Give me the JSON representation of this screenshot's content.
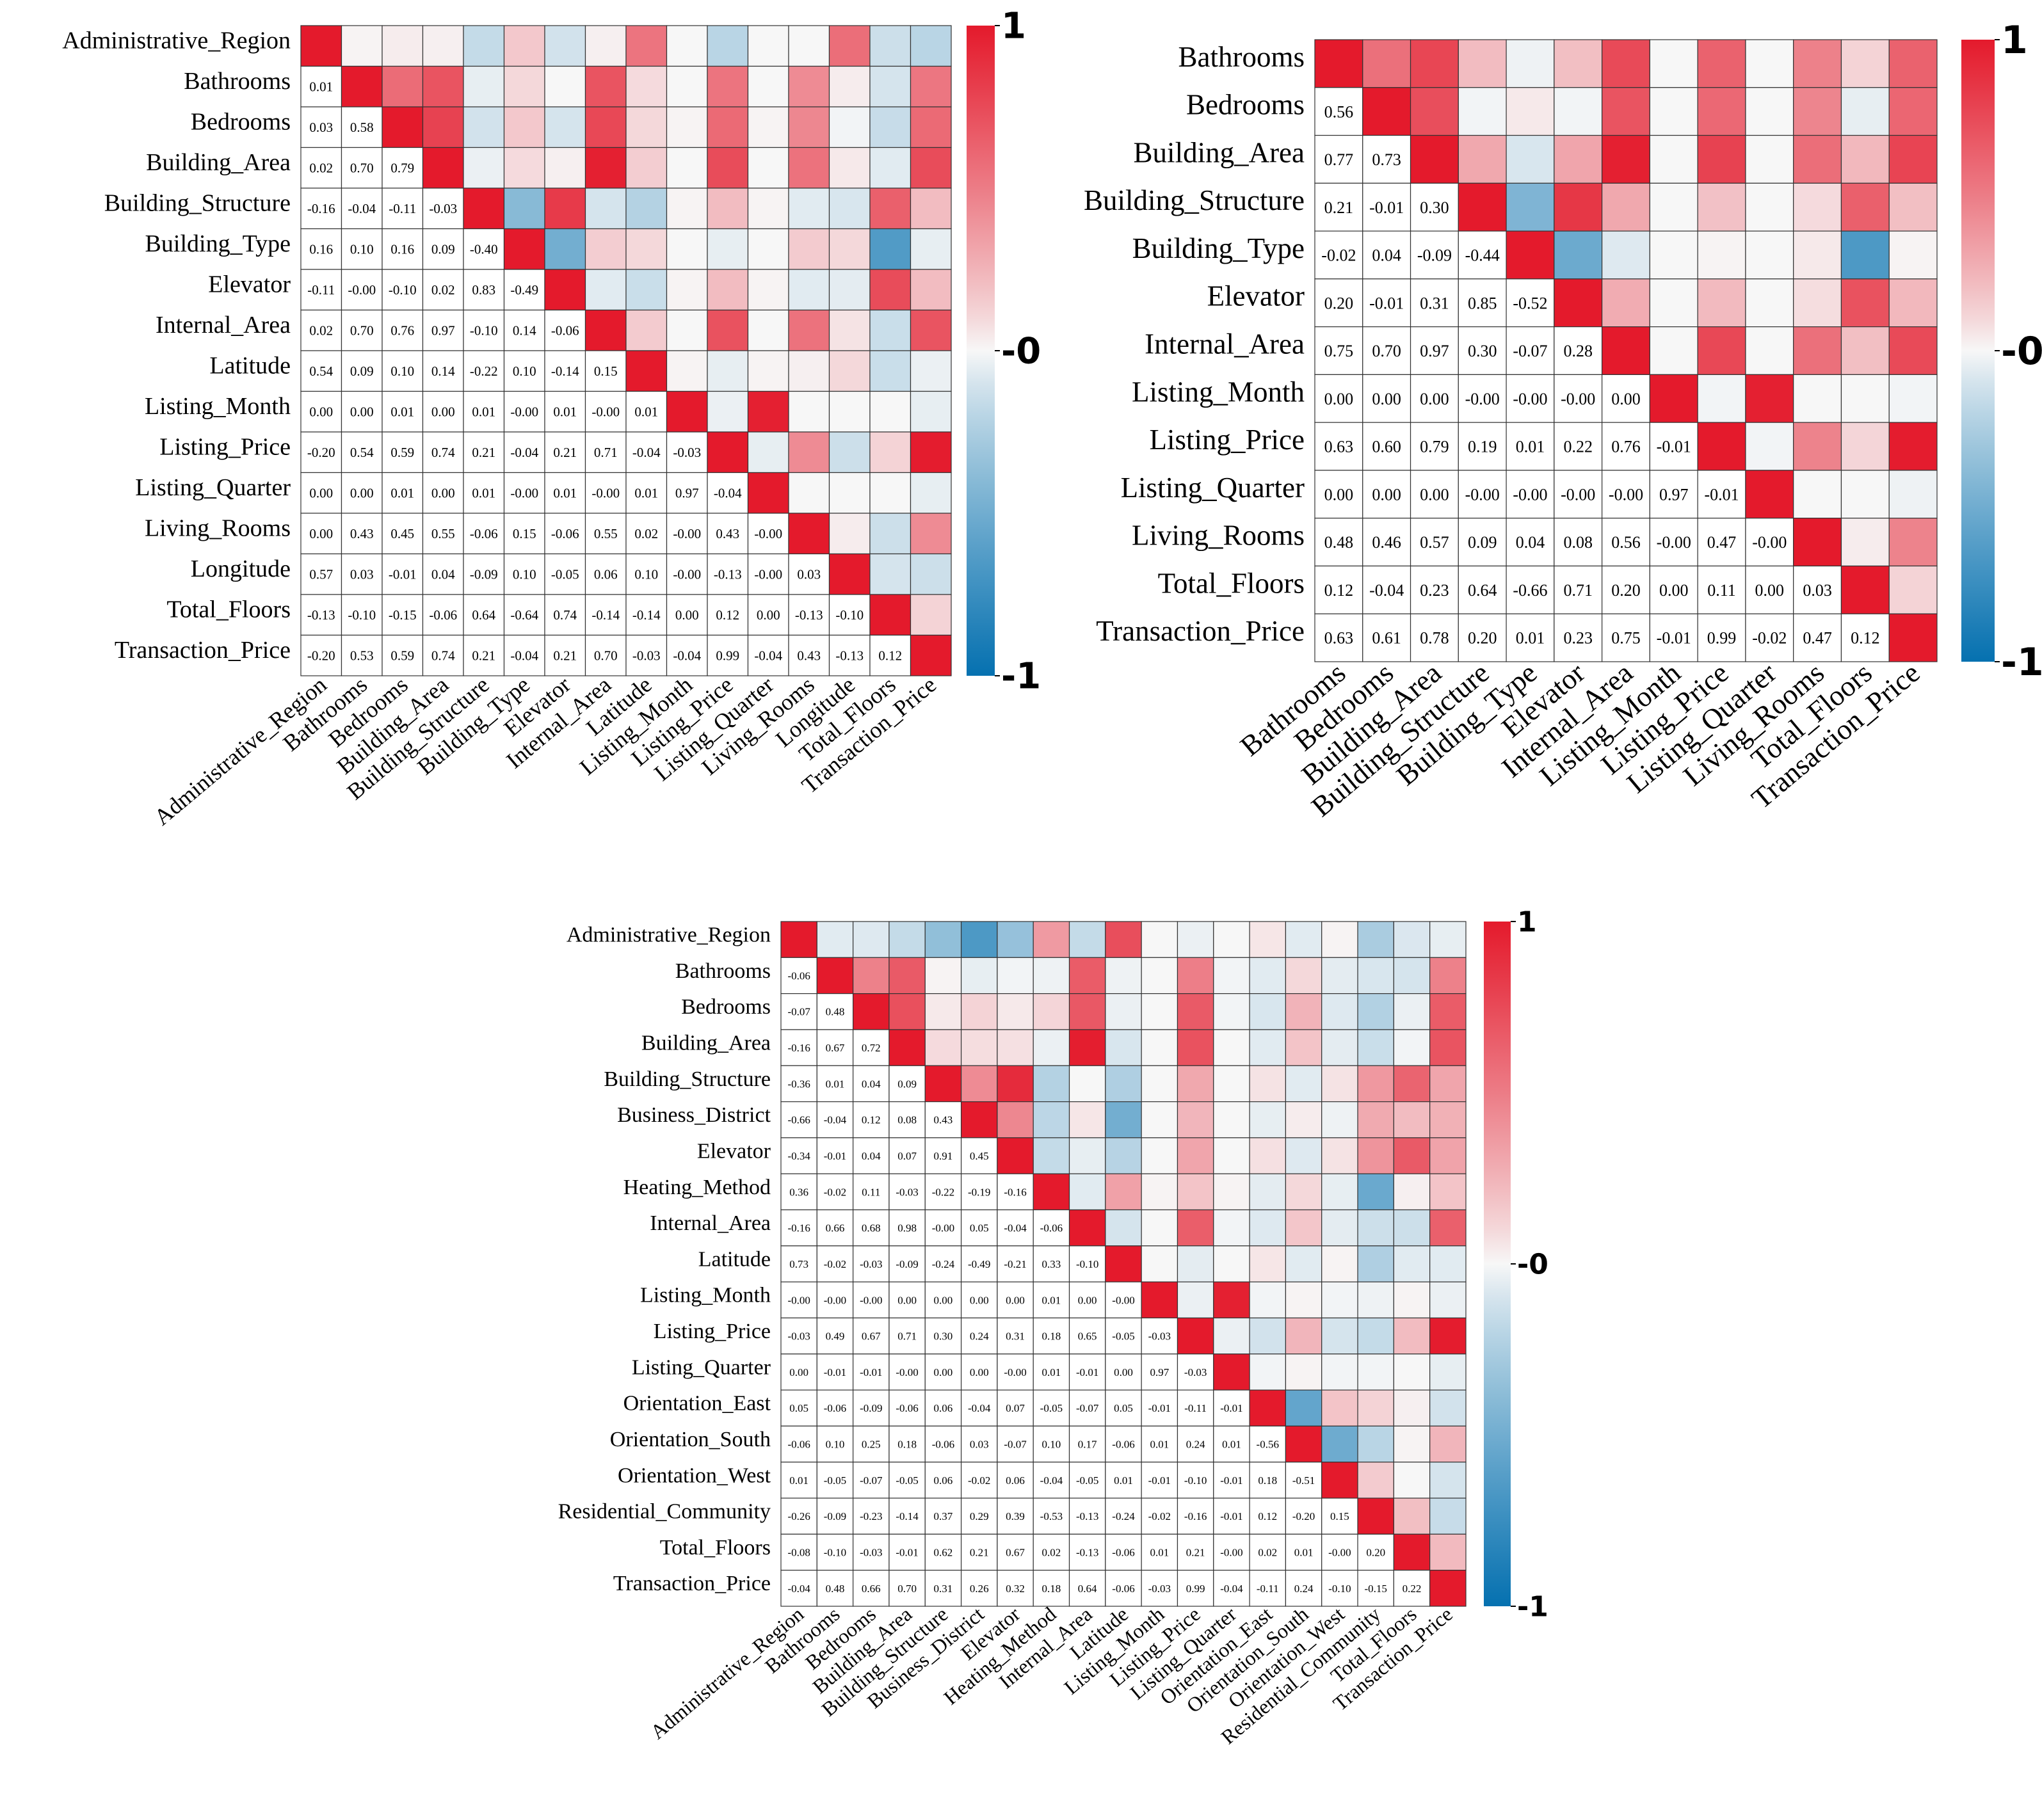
{
  "chart_data": [
    {
      "type": "heatmap",
      "title": "",
      "xlabel": "",
      "ylabel": "",
      "lower_triangle_labels": true,
      "upper_triangle": "color",
      "colorbar": {
        "ticks": [
          "1",
          "-0",
          "-1"
        ],
        "range": [
          -1,
          1
        ],
        "colors": {
          "neg": "#0571b0",
          "mid": "#f7f7f7",
          "pos": "#e41a2c"
        }
      },
      "variables": [
        "Administrative_Region",
        "Bathrooms",
        "Bedrooms",
        "Building_Area",
        "Building_Structure",
        "Building_Type",
        "Elevator",
        "Internal_Area",
        "Latitude",
        "Listing_Month",
        "Listing_Price",
        "Listing_Quarter",
        "Living_Rooms",
        "Longitude",
        "Total_Floors",
        "Transaction_Price"
      ],
      "lower_labels": [
        [],
        [
          "0.01"
        ],
        [
          "0.03",
          "0.58"
        ],
        [
          "0.02",
          "0.70",
          "0.79"
        ],
        [
          "-0.16",
          "-0.04",
          "-0.11",
          "-0.03"
        ],
        [
          "0.16",
          "0.10",
          "0.16",
          "0.09",
          "-0.40"
        ],
        [
          "-0.11",
          "-0.00",
          "-0.10",
          "0.02",
          "0.83",
          "-0.49"
        ],
        [
          "0.02",
          "0.70",
          "0.76",
          "0.97",
          "-0.10",
          "0.14",
          "-0.06"
        ],
        [
          "0.54",
          "0.09",
          "0.10",
          "0.14",
          "-0.22",
          "0.10",
          "-0.14",
          "0.15"
        ],
        [
          "0.00",
          "0.00",
          "0.01",
          "0.00",
          "0.01",
          "-0.00",
          "0.01",
          "-0.00",
          "0.01"
        ],
        [
          "-0.20",
          "0.54",
          "0.59",
          "0.74",
          "0.21",
          "-0.04",
          "0.21",
          "0.71",
          "-0.04",
          "-0.03"
        ],
        [
          "0.00",
          "0.00",
          "0.01",
          "0.00",
          "0.01",
          "-0.00",
          "0.01",
          "-0.00",
          "0.01",
          "0.97",
          "-0.04"
        ],
        [
          "0.00",
          "0.43",
          "0.45",
          "0.55",
          "-0.06",
          "0.15",
          "-0.06",
          "0.55",
          "0.02",
          "-0.00",
          "0.43",
          "-0.00"
        ],
        [
          "0.57",
          "0.03",
          "-0.01",
          "0.04",
          "-0.09",
          "0.10",
          "-0.05",
          "0.06",
          "0.10",
          "-0.00",
          "-0.13",
          "-0.00",
          "0.03"
        ],
        [
          "-0.13",
          "-0.10",
          "-0.15",
          "-0.06",
          "0.64",
          "-0.64",
          "0.74",
          "-0.14",
          "-0.14",
          "0.00",
          "0.12",
          "0.00",
          "-0.13",
          "-0.10"
        ],
        [
          "-0.20",
          "0.53",
          "0.59",
          "0.74",
          "0.21",
          "-0.04",
          "0.21",
          "0.70",
          "-0.03",
          "-0.04",
          "0.99",
          "-0.04",
          "0.43",
          "-0.13",
          "0.12"
        ]
      ]
    },
    {
      "type": "heatmap",
      "title": "",
      "xlabel": "",
      "ylabel": "",
      "lower_triangle_labels": true,
      "upper_triangle": "color",
      "colorbar": {
        "ticks": [
          "1",
          "-0",
          "-1"
        ],
        "range": [
          -1,
          1
        ],
        "colors": {
          "neg": "#0571b0",
          "mid": "#f7f7f7",
          "pos": "#e41a2c"
        }
      },
      "variables": [
        "Bathrooms",
        "Bedrooms",
        "Building_Area",
        "Building_Structure",
        "Building_Type",
        "Elevator",
        "Internal_Area",
        "Listing_Month",
        "Listing_Price",
        "Listing_Quarter",
        "Living_Rooms",
        "Total_Floors",
        "Transaction_Price"
      ],
      "lower_labels": [
        [],
        [
          "0.56"
        ],
        [
          "0.77",
          "0.73"
        ],
        [
          "0.21",
          "-0.01",
          "0.30"
        ],
        [
          "-0.02",
          "0.04",
          "-0.09",
          "-0.44"
        ],
        [
          "0.20",
          "-0.01",
          "0.31",
          "0.85",
          "-0.52"
        ],
        [
          "0.75",
          "0.70",
          "0.97",
          "0.30",
          "-0.07",
          "0.28"
        ],
        [
          "0.00",
          "0.00",
          "0.00",
          "-0.00",
          "-0.00",
          "-0.00",
          "0.00"
        ],
        [
          "0.63",
          "0.60",
          "0.79",
          "0.19",
          "0.01",
          "0.22",
          "0.76",
          "-0.01"
        ],
        [
          "0.00",
          "0.00",
          "0.00",
          "-0.00",
          "-0.00",
          "-0.00",
          "-0.00",
          "0.97",
          "-0.01"
        ],
        [
          "0.48",
          "0.46",
          "0.57",
          "0.09",
          "0.04",
          "0.08",
          "0.56",
          "-0.00",
          "0.47",
          "-0.00"
        ],
        [
          "0.12",
          "-0.04",
          "0.23",
          "0.64",
          "-0.66",
          "0.71",
          "0.20",
          "0.00",
          "0.11",
          "0.00",
          "0.03"
        ],
        [
          "0.63",
          "0.61",
          "0.78",
          "0.20",
          "0.01",
          "0.23",
          "0.75",
          "-0.01",
          "0.99",
          "-0.02",
          "0.47",
          "0.12"
        ]
      ]
    },
    {
      "type": "heatmap",
      "title": "",
      "xlabel": "",
      "ylabel": "",
      "lower_triangle_labels": true,
      "upper_triangle": "color",
      "colorbar": {
        "ticks": [
          "1",
          "-0",
          "-1"
        ],
        "range": [
          -1,
          1
        ],
        "colors": {
          "neg": "#0571b0",
          "mid": "#f7f7f7",
          "pos": "#e41a2c"
        }
      },
      "variables": [
        "Administrative_Region",
        "Bathrooms",
        "Bedrooms",
        "Building_Area",
        "Building_Structure",
        "Business_District",
        "Elevator",
        "Heating_Method",
        "Internal_Area",
        "Latitude",
        "Listing_Month",
        "Listing_Price",
        "Listing_Quarter",
        "Orientation_East",
        "Orientation_South",
        "Orientation_West",
        "Residential_Community",
        "Total_Floors",
        "Transaction_Price"
      ],
      "lower_labels": [
        [],
        [
          "-0.06"
        ],
        [
          "-0.07",
          "0.48"
        ],
        [
          "-0.16",
          "0.67",
          "0.72"
        ],
        [
          "-0.36",
          "0.01",
          "0.04",
          "0.09"
        ],
        [
          "-0.66",
          "-0.04",
          "0.12",
          "0.08",
          "0.43"
        ],
        [
          "-0.34",
          "-0.01",
          "0.04",
          "0.07",
          "0.91",
          "0.45"
        ],
        [
          "0.36",
          "-0.02",
          "0.11",
          "-0.03",
          "-0.22",
          "-0.19",
          "-0.16"
        ],
        [
          "-0.16",
          "0.66",
          "0.68",
          "0.98",
          "-0.00",
          "0.05",
          "-0.04",
          "-0.06"
        ],
        [
          "0.73",
          "-0.02",
          "-0.03",
          "-0.09",
          "-0.24",
          "-0.49",
          "-0.21",
          "0.33",
          "-0.10"
        ],
        [
          "-0.00",
          "-0.00",
          "-0.00",
          "0.00",
          "0.00",
          "0.00",
          "0.00",
          "0.01",
          "0.00",
          "-0.00"
        ],
        [
          "-0.03",
          "0.49",
          "0.67",
          "0.71",
          "0.30",
          "0.24",
          "0.31",
          "0.18",
          "0.65",
          "-0.05",
          "-0.03"
        ],
        [
          "0.00",
          "-0.01",
          "-0.01",
          "-0.00",
          "0.00",
          "0.00",
          "-0.00",
          "0.01",
          "-0.01",
          "0.00",
          "0.97",
          "-0.03"
        ],
        [
          "0.05",
          "-0.06",
          "-0.09",
          "-0.06",
          "0.06",
          "-0.04",
          "0.07",
          "-0.05",
          "-0.07",
          "0.05",
          "-0.01",
          "-0.11",
          "-0.01"
        ],
        [
          "-0.06",
          "0.10",
          "0.25",
          "0.18",
          "-0.06",
          "0.03",
          "-0.07",
          "0.10",
          "0.17",
          "-0.06",
          "0.01",
          "0.24",
          "0.01",
          "-0.56"
        ],
        [
          "0.01",
          "-0.05",
          "-0.07",
          "-0.05",
          "0.06",
          "-0.02",
          "0.06",
          "-0.04",
          "-0.05",
          "0.01",
          "-0.01",
          "-0.10",
          "-0.01",
          "0.18",
          "-0.51"
        ],
        [
          "-0.26",
          "-0.09",
          "-0.23",
          "-0.14",
          "0.37",
          "0.29",
          "0.39",
          "-0.53",
          "-0.13",
          "-0.24",
          "-0.02",
          "-0.16",
          "-0.01",
          "0.12",
          "-0.20",
          "0.15"
        ],
        [
          "-0.08",
          "-0.10",
          "-0.03",
          "-0.01",
          "0.62",
          "0.21",
          "0.67",
          "0.02",
          "-0.13",
          "-0.06",
          "0.01",
          "0.21",
          "-0.00",
          "0.02",
          "0.01",
          "-0.00",
          "0.20"
        ],
        [
          "-0.04",
          "0.48",
          "0.66",
          "0.70",
          "0.31",
          "0.26",
          "0.32",
          "0.18",
          "0.64",
          "-0.06",
          "-0.03",
          "0.99",
          "-0.04",
          "-0.11",
          "0.24",
          "-0.10",
          "-0.15",
          "0.22"
        ]
      ]
    }
  ]
}
